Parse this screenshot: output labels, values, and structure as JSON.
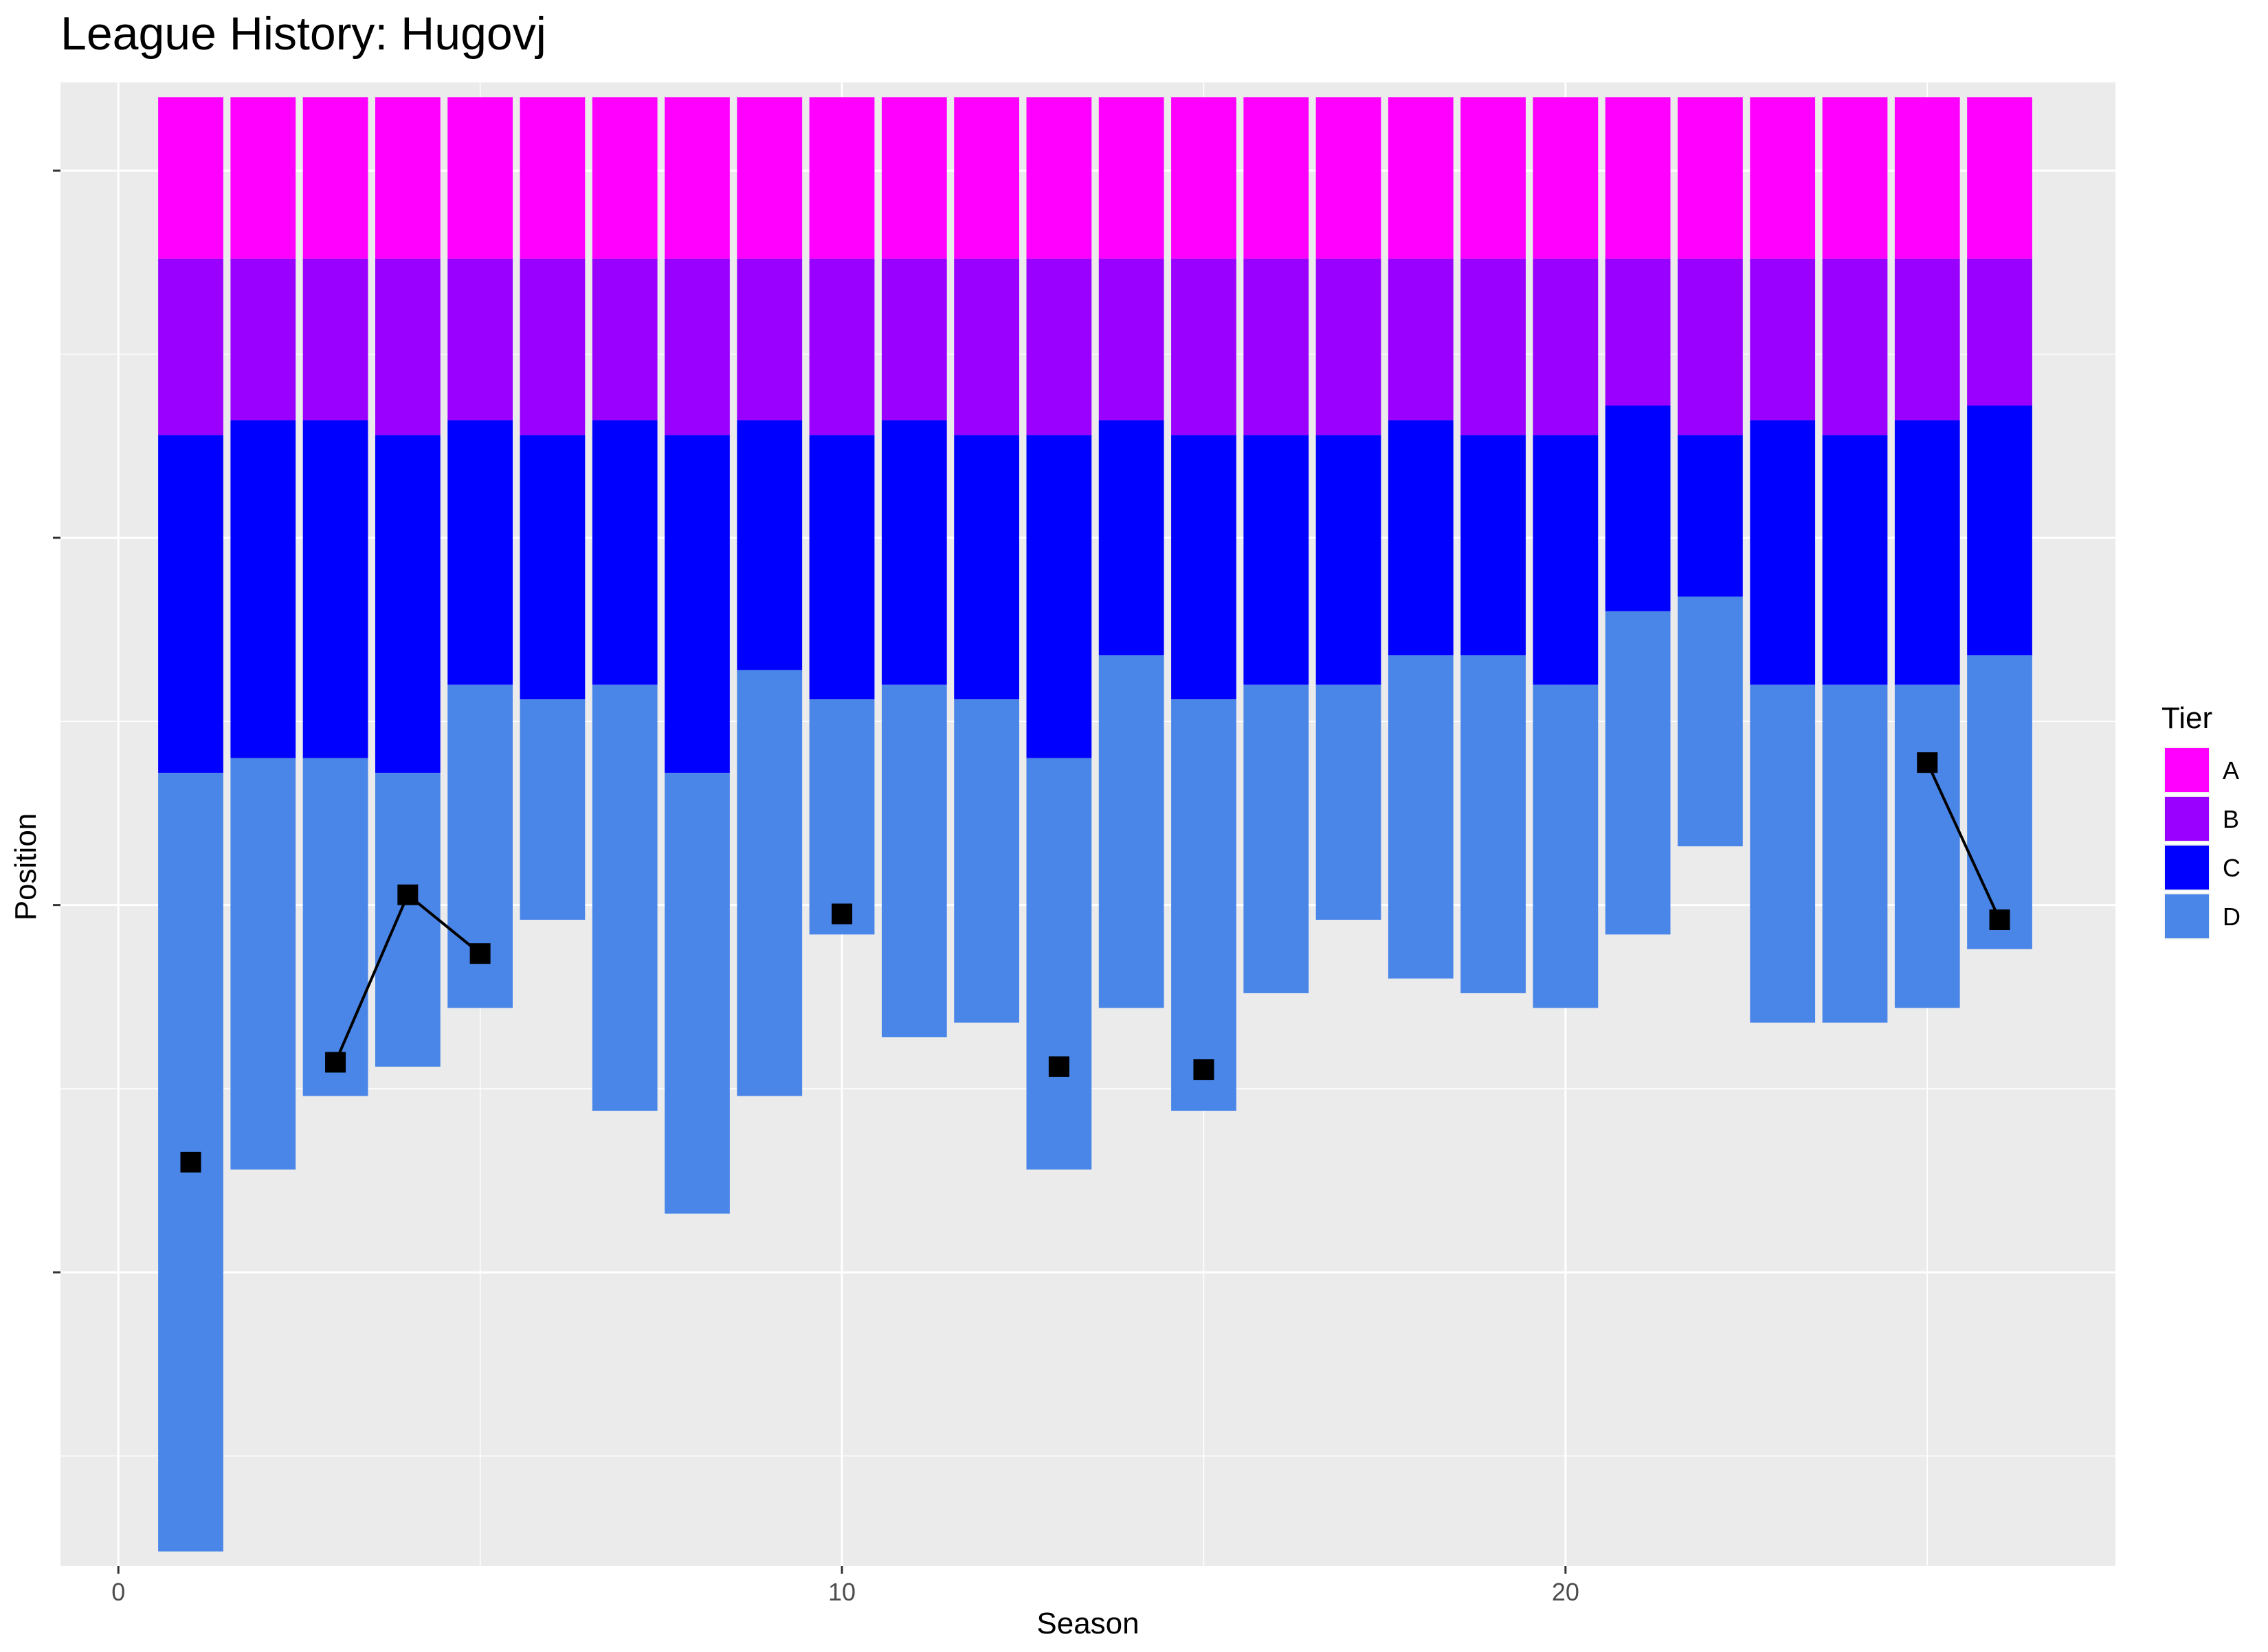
{
  "chart_data": {
    "type": "bar",
    "title": "League History: Hugovj",
    "xlabel": "Season",
    "ylabel": "Position",
    "xlim": [
      -0.8,
      27.6
    ],
    "ylim": [
      100,
      -1
    ],
    "x_ticks": [
      0,
      10,
      20
    ],
    "x_tick_labels": [
      "0",
      "10",
      "20"
    ],
    "y_ticks": [
      5,
      30,
      55,
      80
    ],
    "y_tick_labels": [
      "",
      "",
      "",
      ""
    ],
    "grid": true,
    "legend_title": "Tier",
    "legend_position": "right",
    "tiers": [
      {
        "name": "A",
        "color": "#ff00ff"
      },
      {
        "name": "B",
        "color": "#9900ff"
      },
      {
        "name": "C",
        "color": "#0000ff"
      },
      {
        "name": "D",
        "color": "#4a86e8"
      }
    ],
    "seasons": [
      1,
      2,
      3,
      4,
      5,
      6,
      7,
      8,
      9,
      10,
      11,
      12,
      13,
      14,
      15,
      16,
      17,
      18,
      19,
      20,
      21,
      22,
      23,
      24,
      25,
      26
    ],
    "tier_ends": [
      [
        11,
        23,
        46,
        99
      ],
      [
        11,
        22,
        45,
        73
      ],
      [
        11,
        22,
        45,
        68
      ],
      [
        11,
        23,
        46,
        66
      ],
      [
        11,
        22,
        40,
        62
      ],
      [
        11,
        23,
        41,
        56
      ],
      [
        11,
        22,
        40,
        69
      ],
      [
        11,
        23,
        46,
        76
      ],
      [
        11,
        22,
        39,
        68
      ],
      [
        11,
        23,
        41,
        57
      ],
      [
        11,
        22,
        40,
        64
      ],
      [
        11,
        23,
        41,
        63
      ],
      [
        11,
        23,
        45,
        73
      ],
      [
        11,
        22,
        38,
        62
      ],
      [
        11,
        23,
        41,
        69
      ],
      [
        11,
        23,
        40,
        61
      ],
      [
        11,
        23,
        40,
        56
      ],
      [
        11,
        22,
        38,
        60
      ],
      [
        11,
        23,
        38,
        61
      ],
      [
        11,
        23,
        40,
        62
      ],
      [
        11,
        21,
        35,
        57
      ],
      [
        11,
        23,
        34,
        51
      ],
      [
        11,
        22,
        40,
        63
      ],
      [
        11,
        23,
        40,
        63
      ],
      [
        11,
        22,
        40,
        62
      ],
      [
        11,
        21,
        38,
        58
      ]
    ],
    "position_points": [
      {
        "season": 1,
        "position": 72.5
      },
      {
        "season": 3,
        "position": 65.7
      },
      {
        "season": 4,
        "position": 54.3
      },
      {
        "season": 5,
        "position": 58.3
      },
      {
        "season": 10,
        "position": 55.6
      },
      {
        "season": 13,
        "position": 66.0
      },
      {
        "season": 15,
        "position": 66.2
      },
      {
        "season": 25,
        "position": 45.3
      },
      {
        "season": 26,
        "position": 56.0
      }
    ],
    "position_lines": [
      [
        3,
        4,
        5
      ],
      [
        25,
        26
      ]
    ]
  }
}
